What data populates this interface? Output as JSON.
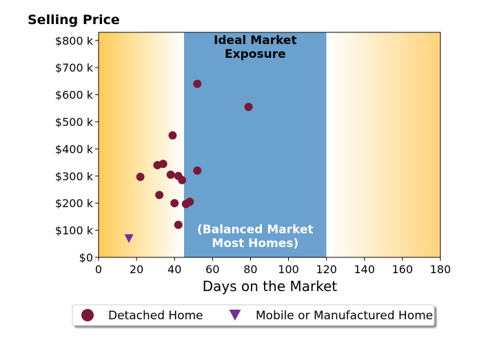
{
  "chart_data": {
    "type": "scatter",
    "title": "Selling Price",
    "xlabel": "Days on the Market",
    "ylabel": "",
    "xlim": [
      0,
      180
    ],
    "ylim": [
      0,
      830000
    ],
    "x_ticks": [
      0,
      20,
      40,
      60,
      80,
      100,
      120,
      140,
      160,
      180
    ],
    "x_tick_labels": [
      "0",
      "20",
      "40",
      "60",
      "80",
      "100",
      "120",
      "140",
      "160",
      "180"
    ],
    "y_ticks": [
      0,
      100000,
      200000,
      300000,
      400000,
      500000,
      600000,
      700000,
      800000
    ],
    "y_tick_labels": [
      "$0",
      "$100 k",
      "$200 k",
      "$300 k",
      "$400 k",
      "$500 k",
      "$600 k",
      "$700 k",
      "$800 k"
    ],
    "grid": false,
    "background_zones": [
      {
        "type": "gradient",
        "from_x": 0,
        "to_x": 45,
        "color_edge": "#ffcc55",
        "color_inner": "#ffffff"
      },
      {
        "type": "band",
        "from_x": 45,
        "to_x": 120,
        "color": "#6aa1cf",
        "label_top": [
          "Ideal Market",
          "Exposure"
        ],
        "label_bottom": [
          "(Balanced Market",
          "Most Homes)"
        ]
      },
      {
        "type": "gradient",
        "from_x": 120,
        "to_x": 180,
        "color_edge": "#ffd37a",
        "color_inner": "#ffffff"
      }
    ],
    "series": [
      {
        "name": "Detached Home",
        "marker": "circle",
        "color": "#7b1836",
        "points": [
          {
            "x": 22,
            "y": 297000
          },
          {
            "x": 31,
            "y": 340000
          },
          {
            "x": 32,
            "y": 230000
          },
          {
            "x": 34,
            "y": 345000
          },
          {
            "x": 38,
            "y": 305000
          },
          {
            "x": 39,
            "y": 450000
          },
          {
            "x": 40,
            "y": 200000
          },
          {
            "x": 42,
            "y": 300000
          },
          {
            "x": 42,
            "y": 120000
          },
          {
            "x": 44,
            "y": 285000
          },
          {
            "x": 46,
            "y": 197000
          },
          {
            "x": 48,
            "y": 205000
          },
          {
            "x": 52,
            "y": 640000
          },
          {
            "x": 52,
            "y": 320000
          },
          {
            "x": 79,
            "y": 555000
          }
        ]
      },
      {
        "name": "Mobile or Manufactured Home",
        "marker": "triangle-down",
        "color": "#7030a0",
        "points": [
          {
            "x": 16,
            "y": 70000
          }
        ]
      }
    ],
    "legend": {
      "placement": "bottom-center"
    }
  }
}
